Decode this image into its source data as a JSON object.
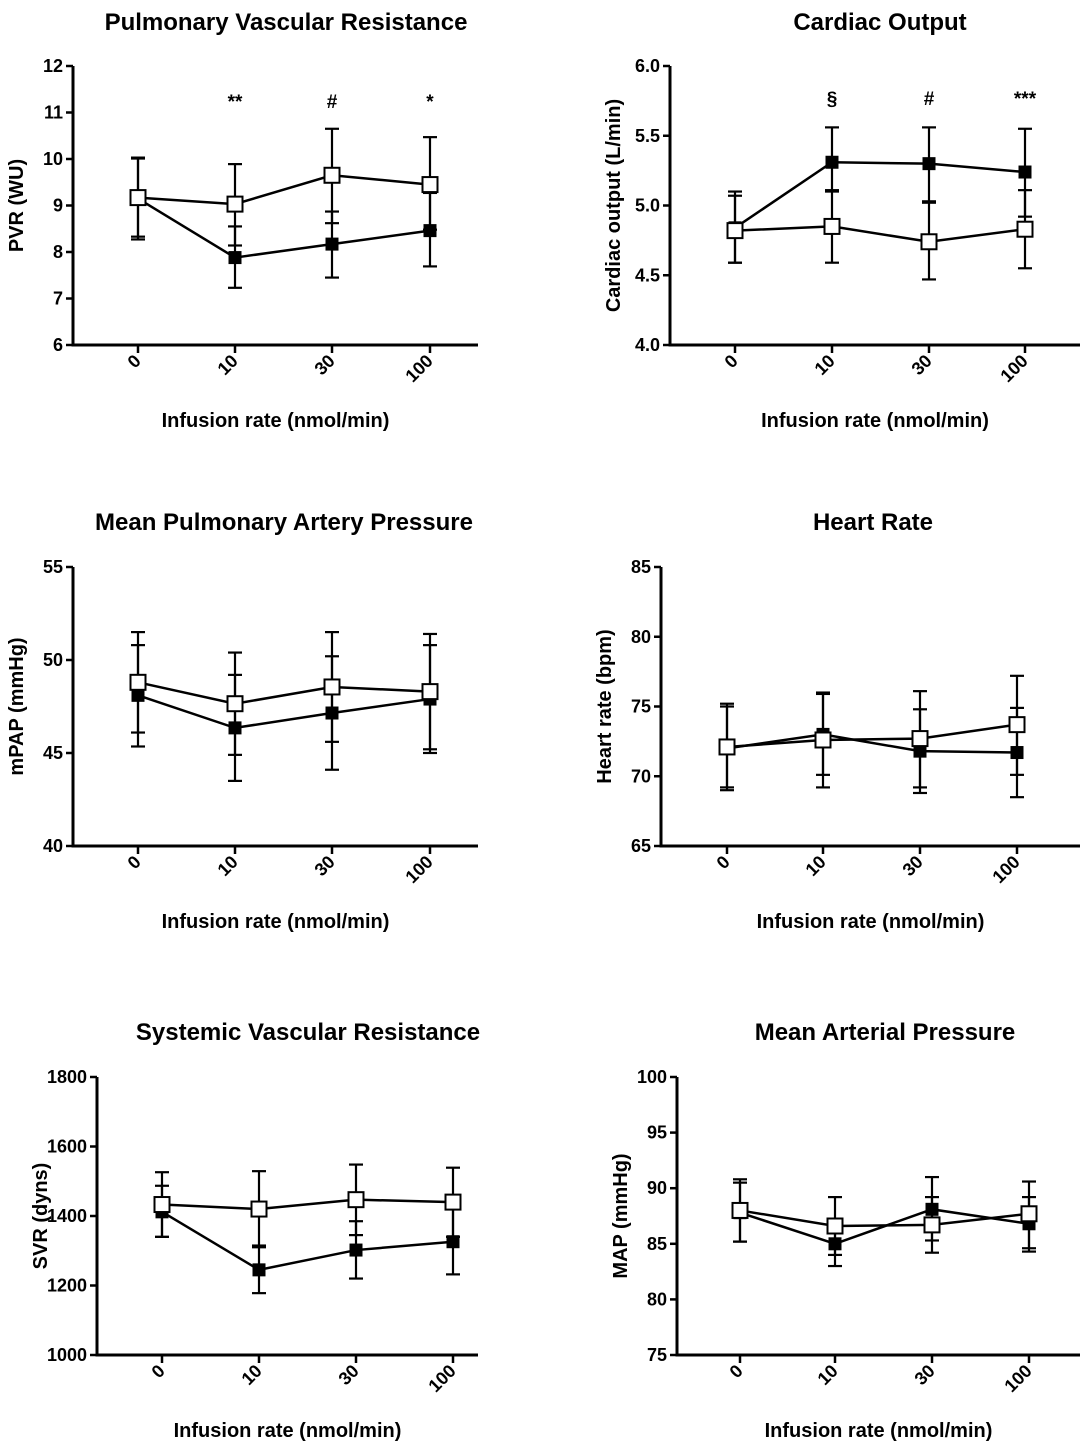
{
  "chart_data": [
    {
      "id": "pvr",
      "type": "line",
      "title": "Pulmonary Vascular Resistance",
      "xlabel": "Infusion rate (nmol/min)",
      "ylabel": "PVR (WU)",
      "categories": [
        "0",
        "10",
        "30",
        "100"
      ],
      "ylim": [
        6,
        12
      ],
      "yticks": [
        "6",
        "7",
        "8",
        "9",
        "10",
        "11",
        "12"
      ],
      "grid": false,
      "annotations": [
        "",
        "**",
        "#",
        "*"
      ],
      "series": [
        {
          "marker": "filled-square",
          "values": [
            9.15,
            7.88,
            8.17,
            8.46
          ],
          "err_upper": [
            10.03,
            8.55,
            8.87,
            9.27
          ],
          "err_lower": [
            8.27,
            7.23,
            7.45,
            7.69
          ]
        },
        {
          "marker": "open-square",
          "values": [
            9.17,
            9.03,
            9.65,
            9.45
          ],
          "err_upper": [
            10.01,
            9.89,
            10.65,
            10.47
          ],
          "err_lower": [
            8.33,
            8.14,
            8.62,
            8.48
          ]
        }
      ]
    },
    {
      "id": "co",
      "type": "line",
      "title": "Cardiac Output",
      "xlabel": "Infusion rate (nmol/min)",
      "ylabel": "Cardiac output (L/min)",
      "categories": [
        "0",
        "10",
        "30",
        "100"
      ],
      "ylim": [
        4.0,
        6.0
      ],
      "yticks": [
        "4.0",
        "4.5",
        "5.0",
        "5.5",
        "6.0"
      ],
      "grid": false,
      "annotations": [
        "",
        "§",
        "#",
        "***"
      ],
      "series": [
        {
          "marker": "filled-square",
          "values": [
            4.84,
            5.31,
            5.3,
            5.24
          ],
          "err_upper": [
            5.1,
            5.56,
            5.56,
            5.55
          ],
          "err_lower": [
            4.59,
            5.1,
            5.02,
            4.92
          ]
        },
        {
          "marker": "open-square",
          "values": [
            4.82,
            4.85,
            4.74,
            4.83
          ],
          "err_upper": [
            5.07,
            5.11,
            5.03,
            5.11
          ],
          "err_lower": [
            4.59,
            4.59,
            4.47,
            4.55
          ]
        }
      ]
    },
    {
      "id": "mpap",
      "type": "line",
      "title": "Mean Pulmonary Artery Pressure",
      "xlabel": "Infusion rate (nmol/min)",
      "ylabel": "mPAP (mmHg)",
      "categories": [
        "0",
        "10",
        "30",
        "100"
      ],
      "ylim": [
        40,
        55
      ],
      "yticks": [
        "40",
        "45",
        "50",
        "55"
      ],
      "grid": false,
      "annotations": [
        "",
        "",
        "",
        ""
      ],
      "series": [
        {
          "marker": "filled-square",
          "values": [
            48.1,
            46.35,
            47.15,
            47.9
          ],
          "err_upper": [
            50.8,
            49.2,
            50.2,
            50.8
          ],
          "err_lower": [
            45.35,
            43.5,
            44.1,
            45.0
          ]
        },
        {
          "marker": "open-square",
          "values": [
            48.8,
            47.65,
            48.55,
            48.3
          ],
          "err_upper": [
            51.5,
            50.4,
            51.5,
            51.4
          ],
          "err_lower": [
            46.1,
            44.9,
            45.6,
            45.2
          ]
        }
      ]
    },
    {
      "id": "hr",
      "type": "line",
      "title": "Heart Rate",
      "xlabel": "Infusion rate (nmol/min)",
      "ylabel": "Heart rate (bpm)",
      "categories": [
        "0",
        "10",
        "30",
        "100"
      ],
      "ylim": [
        65,
        85
      ],
      "yticks": [
        "65",
        "70",
        "75",
        "80",
        "85"
      ],
      "grid": false,
      "annotations": [
        "",
        "",
        "",
        ""
      ],
      "series": [
        {
          "marker": "filled-square",
          "values": [
            72.0,
            73.0,
            71.8,
            71.7
          ],
          "err_upper": [
            75.0,
            76.0,
            74.8,
            74.9
          ],
          "err_lower": [
            69.0,
            70.1,
            68.8,
            68.5
          ]
        },
        {
          "marker": "open-square",
          "values": [
            72.1,
            72.6,
            72.7,
            73.7
          ],
          "err_upper": [
            75.2,
            75.9,
            76.1,
            77.2
          ],
          "err_lower": [
            69.2,
            69.2,
            69.2,
            70.1
          ]
        }
      ]
    },
    {
      "id": "svr",
      "type": "line",
      "title": "Systemic Vascular Resistance",
      "xlabel": "Infusion rate (nmol/min)",
      "ylabel": "SVR (dyns)",
      "categories": [
        "0",
        "10",
        "30",
        "100"
      ],
      "ylim": [
        1000,
        1800
      ],
      "yticks": [
        "1000",
        "1200",
        "1400",
        "1600",
        "1800"
      ],
      "grid": false,
      "annotations": [
        "",
        "",
        "",
        ""
      ],
      "series": [
        {
          "marker": "filled-square",
          "values": [
            1412,
            1245,
            1302,
            1326
          ],
          "err_upper": [
            1487,
            1315,
            1385,
            1420
          ],
          "err_lower": [
            1340,
            1178,
            1220,
            1232
          ]
        },
        {
          "marker": "open-square",
          "values": [
            1433,
            1420,
            1447,
            1440
          ],
          "err_upper": [
            1526,
            1529,
            1548,
            1539
          ],
          "err_lower": [
            1340,
            1310,
            1345,
            1340
          ]
        }
      ]
    },
    {
      "id": "map",
      "type": "line",
      "title": "Mean Arterial Pressure",
      "xlabel": "Infusion rate (nmol/min)",
      "ylabel": "MAP (mmHg)",
      "categories": [
        "0",
        "10",
        "30",
        "100"
      ],
      "ylim": [
        75,
        100
      ],
      "yticks": [
        "75",
        "80",
        "85",
        "90",
        "95",
        "100"
      ],
      "grid": false,
      "annotations": [
        "",
        "",
        "",
        ""
      ],
      "series": [
        {
          "marker": "filled-square",
          "values": [
            87.8,
            85.0,
            88.1,
            86.8
          ],
          "err_upper": [
            90.5,
            87.0,
            91.0,
            89.2
          ],
          "err_lower": [
            85.2,
            83.0,
            85.3,
            84.3
          ]
        },
        {
          "marker": "open-square",
          "values": [
            88.0,
            86.6,
            86.7,
            87.7
          ],
          "err_upper": [
            90.8,
            89.2,
            89.2,
            90.6
          ],
          "err_lower": [
            85.2,
            84.0,
            84.2,
            84.6
          ]
        }
      ]
    }
  ]
}
